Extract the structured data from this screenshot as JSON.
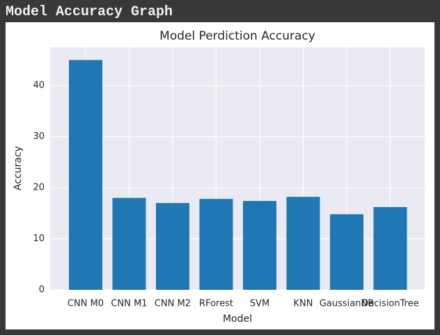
{
  "heading": "Model Accuracy Graph",
  "chart_data": {
    "type": "bar",
    "title": "Model Perdiction Accuracy",
    "x_label": "Model",
    "y_label": "Accuracy",
    "categories": [
      "CNN M0",
      "CNN M1",
      "CNN M2",
      "RForest",
      "SVM",
      "KNN",
      "GaussianNB",
      "DecisionTree"
    ],
    "values": [
      45.0,
      18.0,
      17.0,
      17.8,
      17.4,
      18.2,
      14.8,
      16.2
    ],
    "color": "#1f77b4",
    "ylim": [
      0,
      47.5
    ],
    "yticks": [
      0,
      10,
      20,
      30,
      40
    ],
    "grid": true
  }
}
